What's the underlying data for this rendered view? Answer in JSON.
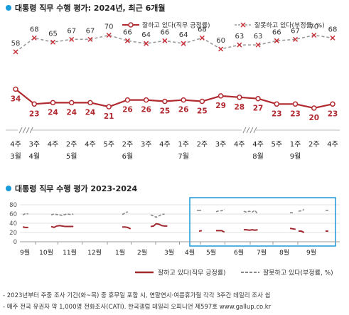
{
  "chart_data": [
    {
      "type": "line",
      "title": "대통령 직무 수행 평가: 2024년, 최근 6개월",
      "x": [
        {
          "week": "4주",
          "month": "3월"
        },
        {
          "week": "3주",
          "month": "4월"
        },
        {
          "week": "4주",
          "month": ""
        },
        {
          "week": "2주",
          "month": "5월"
        },
        {
          "week": "4주",
          "month": ""
        },
        {
          "week": "5주",
          "month": ""
        },
        {
          "week": "2주",
          "month": "6월"
        },
        {
          "week": "3주",
          "month": ""
        },
        {
          "week": "4주",
          "month": ""
        },
        {
          "week": "1주",
          "month": "7월"
        },
        {
          "week": "2주",
          "month": ""
        },
        {
          "week": "3주",
          "month": ""
        },
        {
          "week": "4주",
          "month": ""
        },
        {
          "week": "4주",
          "month": "8월"
        },
        {
          "week": "5주",
          "month": ""
        },
        {
          "week": "1주",
          "month": "9월"
        },
        {
          "week": "2주",
          "month": ""
        },
        {
          "week": "4주",
          "month": ""
        }
      ],
      "series": [
        {
          "name": "잘하고 있다(직무 긍정률)",
          "color": "#b02a30",
          "marker": "circle",
          "values": [
            34,
            23,
            24,
            24,
            24,
            21,
            26,
            26,
            25,
            26,
            25,
            29,
            28,
            27,
            23,
            23,
            20,
            23
          ]
        },
        {
          "name": "잘못하고 있다(부정률, %)",
          "color": "#c9303a",
          "marker": "x",
          "line_color": "#999999",
          "line_style": "dashed",
          "values": [
            58,
            68,
            65,
            67,
            67,
            70,
            66,
            64,
            66,
            64,
            68,
            60,
            63,
            63,
            66,
            67,
            70,
            68
          ]
        }
      ],
      "breaks_after": [
        0,
        12
      ],
      "ylim": [
        0,
        80
      ],
      "grid": false,
      "legend": "top"
    },
    {
      "type": "line",
      "title": "대통령 직무 수행 평가 2023-2024",
      "yticks": [
        0,
        20,
        40,
        60,
        80
      ],
      "ylim": [
        0,
        80
      ],
      "month_labels": [
        "9월",
        "10월",
        "11월",
        "12월",
        "1월",
        "2월",
        "3월",
        "4월",
        "5월",
        "6월",
        "7월",
        "8월",
        "9월"
      ],
      "highlight": {
        "from_month": "4월",
        "to_month": "9월",
        "color": "#1a9ad6"
      },
      "series": [
        {
          "name": "잘하고 있다(직무 긍정률)",
          "color": "#a0282e",
          "style": "solid",
          "segments": [
            [
              32,
              31,
              31
            ],
            [
              33,
              31,
              34,
              35,
              34,
              33,
              33,
              33,
              33
            ],
            [
              32,
              32,
              31,
              28
            ],
            [
              33,
              34,
              39,
              38,
              35,
              34,
              34
            ],
            [
              23,
              24
            ],
            [
              24,
              24,
              24,
              21
            ],
            [
              26,
              26,
              25,
              26,
              25,
              26
            ],
            [
              29,
              28,
              27
            ],
            [
              23,
              23,
              20
            ],
            [
              23,
              23
            ]
          ]
        },
        {
          "name": "잘못하고 있다(부정률, %)",
          "color": "#888888",
          "style": "dashed",
          "segments": [
            [
              58,
              61,
              60
            ],
            [
              58,
              60,
              59,
              58,
              57,
              59,
              60,
              59,
              60
            ],
            [
              59,
              62,
              65
            ],
            [
              58,
              56,
              53,
              56,
              59,
              60
            ],
            [
              68
            ],
            [
              65,
              67,
              67,
              70
            ],
            [
              66,
              64,
              66,
              64,
              68,
              60
            ],
            [
              63,
              63
            ],
            [
              66,
              67,
              70
            ],
            [
              68,
              68
            ]
          ]
        }
      ],
      "legend": "bottom"
    }
  ],
  "legend": {
    "positive": "잘하고 있다(직무 긍정률)",
    "negative": "잘못하고 있다(부정률, %)"
  },
  "notes": [
    "- 2023년부터 주중 조사 기간(화~목) 중 휴무일 포함 시, 연말연시·여름휴가철 각각 3주간 데일리 조사 쉼",
    "- 매주 전국 유권자 약 1,000명 전화조사(CATI). 한국갤럽 데일리 오피니언 제597호 www.gallup.co.kr"
  ]
}
